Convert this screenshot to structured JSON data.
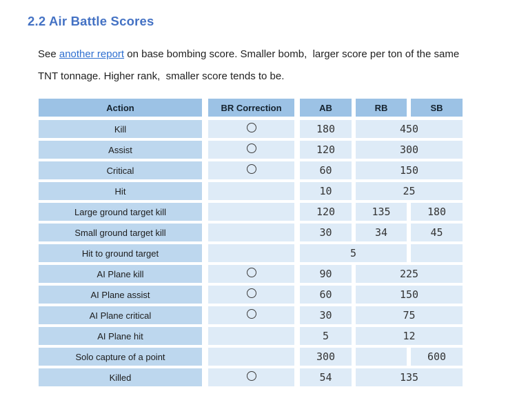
{
  "page": {
    "heading": "2.2 Air Battle Scores"
  },
  "intro": {
    "prefix": "See ",
    "link_text": "another report",
    "line1_rest": " on base bombing score. Smaller bomb,  larger score per ton of the same",
    "line2": "TNT tonnage. Higher rank,  smaller score tends to be."
  },
  "colors": {
    "heading_blue": "#4472C4",
    "link_blue": "#2E6FD0",
    "header_cell_bg": "#9CC2E5",
    "action_cell_bg": "#BDD7EE",
    "data_cell_bg": "#DEEBF7",
    "circle_outline": "#3C3C3C"
  },
  "table": {
    "headers": [
      "Action",
      "BR Correction",
      "AB",
      "RB",
      "SB"
    ],
    "circle_icon_meaning": "br-correction-applies",
    "rows": [
      {
        "action": "Kill",
        "br_circle": true,
        "scores": [
          {
            "value": "180",
            "span": 1
          },
          {
            "value": "450",
            "span": 2
          }
        ]
      },
      {
        "action": "Assist",
        "br_circle": true,
        "scores": [
          {
            "value": "120",
            "span": 1
          },
          {
            "value": "300",
            "span": 2
          }
        ]
      },
      {
        "action": "Critical",
        "br_circle": true,
        "scores": [
          {
            "value": "60",
            "span": 1
          },
          {
            "value": "150",
            "span": 2
          }
        ]
      },
      {
        "action": "Hit",
        "br_circle": false,
        "scores": [
          {
            "value": "10",
            "span": 1
          },
          {
            "value": "25",
            "span": 2
          }
        ]
      },
      {
        "action": "Large ground target kill",
        "br_circle": false,
        "scores": [
          {
            "value": "120",
            "span": 1
          },
          {
            "value": "135",
            "span": 1
          },
          {
            "value": "180",
            "span": 1
          }
        ]
      },
      {
        "action": "Small ground target kill",
        "br_circle": false,
        "scores": [
          {
            "value": "30",
            "span": 1
          },
          {
            "value": "34",
            "span": 1
          },
          {
            "value": "45",
            "span": 1
          }
        ]
      },
      {
        "action": "Hit to ground target",
        "br_circle": false,
        "scores": [
          {
            "value": "5",
            "span": 2
          },
          {
            "value": "",
            "span": 1
          }
        ]
      },
      {
        "action": "AI Plane kill",
        "br_circle": true,
        "scores": [
          {
            "value": "90",
            "span": 1
          },
          {
            "value": "225",
            "span": 2
          }
        ]
      },
      {
        "action": "AI Plane assist",
        "br_circle": true,
        "scores": [
          {
            "value": "60",
            "span": 1
          },
          {
            "value": "150",
            "span": 2
          }
        ]
      },
      {
        "action": "AI Plane critical",
        "br_circle": true,
        "scores": [
          {
            "value": "30",
            "span": 1
          },
          {
            "value": "75",
            "span": 2
          }
        ]
      },
      {
        "action": "AI Plane hit",
        "br_circle": false,
        "scores": [
          {
            "value": "5",
            "span": 1
          },
          {
            "value": "12",
            "span": 2
          }
        ]
      },
      {
        "action": "Solo capture of a point",
        "br_circle": false,
        "scores": [
          {
            "value": "300",
            "span": 1
          },
          {
            "value": "",
            "span": 1
          },
          {
            "value": "600",
            "span": 1
          }
        ]
      },
      {
        "action": "Killed",
        "br_circle": true,
        "scores": [
          {
            "value": "54",
            "span": 1
          },
          {
            "value": "135",
            "span": 2
          }
        ]
      }
    ]
  }
}
